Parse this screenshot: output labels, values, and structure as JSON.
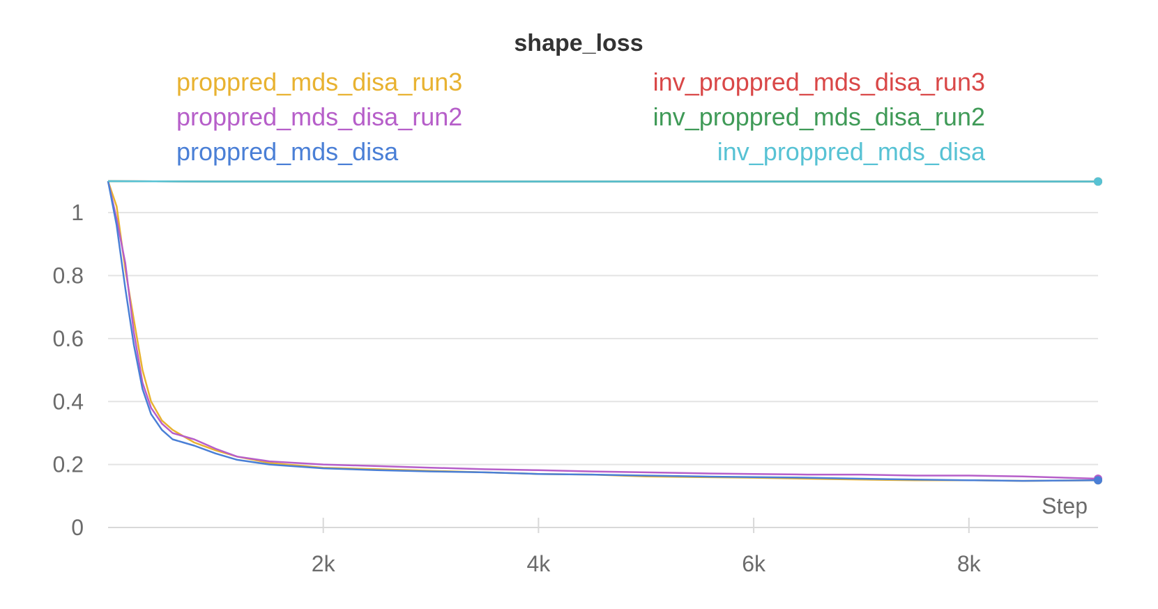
{
  "chart_data": {
    "type": "line",
    "title": "shape_loss",
    "xlabel": "Step",
    "ylabel": "",
    "xlim": [
      0,
      9200
    ],
    "ylim": [
      0,
      1.1
    ],
    "grid": true,
    "legend_position": "top",
    "x_ticks": [
      {
        "value": 2000,
        "label": "2k"
      },
      {
        "value": 4000,
        "label": "4k"
      },
      {
        "value": 6000,
        "label": "6k"
      },
      {
        "value": 8000,
        "label": "8k"
      }
    ],
    "y_ticks": [
      {
        "value": 0,
        "label": "0"
      },
      {
        "value": 0.2,
        "label": "0.2"
      },
      {
        "value": 0.4,
        "label": "0.4"
      },
      {
        "value": 0.6,
        "label": "0.6"
      },
      {
        "value": 0.8,
        "label": "0.8"
      },
      {
        "value": 1,
        "label": "1"
      }
    ],
    "series": [
      {
        "name": "proppred_mds_disa_run3",
        "color": "#e8b230",
        "legend_column": 0,
        "x": [
          0,
          80,
          160,
          240,
          320,
          400,
          500,
          600,
          700,
          800,
          1000,
          1200,
          1500,
          2000,
          2500,
          3000,
          3500,
          4000,
          4500,
          5000,
          5500,
          6000,
          6500,
          7000,
          7500,
          8000,
          8500,
          9200
        ],
        "y": [
          1.1,
          1.02,
          0.82,
          0.66,
          0.5,
          0.4,
          0.34,
          0.31,
          0.29,
          0.27,
          0.245,
          0.225,
          0.205,
          0.19,
          0.185,
          0.18,
          0.175,
          0.17,
          0.168,
          0.162,
          0.16,
          0.158,
          0.155,
          0.152,
          0.15,
          0.15,
          0.148,
          0.15
        ]
      },
      {
        "name": "proppred_mds_disa_run2",
        "color": "#b65ec9",
        "legend_column": 0,
        "x": [
          0,
          80,
          160,
          240,
          320,
          400,
          500,
          600,
          700,
          800,
          1000,
          1200,
          1500,
          2000,
          2500,
          3000,
          3500,
          4000,
          4500,
          5000,
          5500,
          6000,
          6500,
          7000,
          7500,
          8000,
          8500,
          9200
        ],
        "y": [
          1.1,
          0.98,
          0.84,
          0.62,
          0.46,
          0.38,
          0.33,
          0.3,
          0.29,
          0.28,
          0.25,
          0.225,
          0.21,
          0.2,
          0.195,
          0.19,
          0.185,
          0.182,
          0.178,
          0.175,
          0.172,
          0.17,
          0.168,
          0.168,
          0.165,
          0.165,
          0.162,
          0.155
        ]
      },
      {
        "name": "proppred_mds_disa",
        "color": "#4a7fd6",
        "legend_column": 0,
        "x": [
          0,
          80,
          160,
          240,
          320,
          400,
          500,
          600,
          700,
          800,
          1000,
          1200,
          1500,
          2000,
          2500,
          3000,
          3500,
          4000,
          4500,
          5000,
          5500,
          6000,
          6500,
          7000,
          7500,
          8000,
          8500,
          9200
        ],
        "y": [
          1.1,
          0.96,
          0.76,
          0.58,
          0.44,
          0.36,
          0.31,
          0.28,
          0.27,
          0.26,
          0.235,
          0.215,
          0.2,
          0.188,
          0.182,
          0.178,
          0.175,
          0.17,
          0.168,
          0.165,
          0.162,
          0.16,
          0.158,
          0.155,
          0.152,
          0.15,
          0.148,
          0.15
        ]
      },
      {
        "name": "inv_proppred_mds_disa_run3",
        "color": "#d94747",
        "legend_column": 1,
        "x": [
          0,
          1000,
          2000,
          3000,
          4000,
          5000,
          6000,
          7000,
          8000,
          9200
        ],
        "y": [
          1.1,
          1.099,
          1.099,
          1.099,
          1.099,
          1.099,
          1.099,
          1.099,
          1.099,
          1.099
        ]
      },
      {
        "name": "inv_proppred_mds_disa_run2",
        "color": "#3f9a57",
        "legend_column": 1,
        "x": [
          0,
          1000,
          2000,
          3000,
          4000,
          5000,
          6000,
          7000,
          8000,
          9200
        ],
        "y": [
          1.1,
          1.099,
          1.099,
          1.099,
          1.099,
          1.099,
          1.099,
          1.099,
          1.099,
          1.099
        ]
      },
      {
        "name": "inv_proppred_mds_disa",
        "color": "#57c2d4",
        "legend_column": 1,
        "x": [
          0,
          1000,
          2000,
          3000,
          4000,
          5000,
          6000,
          7000,
          8000,
          9200
        ],
        "y": [
          1.1,
          1.099,
          1.099,
          1.099,
          1.099,
          1.099,
          1.099,
          1.099,
          1.099,
          1.099
        ]
      }
    ]
  }
}
